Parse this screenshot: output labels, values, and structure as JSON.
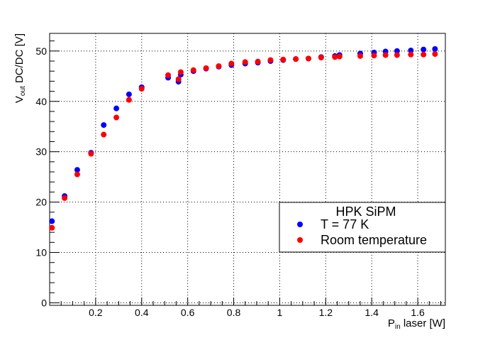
{
  "chart_data": {
    "type": "scatter",
    "title": "",
    "xlabel": {
      "main": "P",
      "sub": "in",
      "rest": " laser [W]"
    },
    "ylabel": {
      "main": "V",
      "sub": "out",
      "rest": " DC/DC [V]"
    },
    "xlim": [
      0.0,
      1.72
    ],
    "ylim": [
      -0.5,
      53.5
    ],
    "x_ticks": [
      0.2,
      0.4,
      0.6,
      0.8,
      1.0,
      1.2,
      1.4,
      1.6
    ],
    "x_tick_labels": [
      "0.2",
      "0.4",
      "0.6",
      "0.8",
      "1",
      "1.2",
      "1.4",
      "1.6"
    ],
    "y_ticks": [
      0,
      10,
      20,
      30,
      40,
      50
    ],
    "y_tick_labels": [
      "0",
      "10",
      "20",
      "30",
      "40",
      "50"
    ],
    "grid": true,
    "legend": {
      "title": "HPK SiPM",
      "placement": "lower-right"
    },
    "series": [
      {
        "name": "T = 77 K",
        "color": "#0000ff",
        "x": [
          0.01,
          0.065,
          0.12,
          0.18,
          0.235,
          0.29,
          0.345,
          0.4,
          0.515,
          0.56,
          0.57,
          0.625,
          0.68,
          0.735,
          0.79,
          0.85,
          0.905,
          0.96,
          1.015,
          1.07,
          1.125,
          1.18,
          1.24,
          1.26,
          1.35,
          1.41,
          1.46,
          1.51,
          1.57,
          1.625,
          1.675
        ],
        "y": [
          16.2,
          21.2,
          26.4,
          29.8,
          35.3,
          38.6,
          41.4,
          42.8,
          44.7,
          43.9,
          45.3,
          46.0,
          46.5,
          46.9,
          47.2,
          47.5,
          47.7,
          48.0,
          48.2,
          48.4,
          48.5,
          48.8,
          49.0,
          49.2,
          49.5,
          49.7,
          49.9,
          50.0,
          50.1,
          50.3,
          50.4
        ]
      },
      {
        "name": "Room temperature",
        "color": "#ff0000",
        "x": [
          0.01,
          0.065,
          0.12,
          0.18,
          0.235,
          0.29,
          0.345,
          0.4,
          0.515,
          0.56,
          0.57,
          0.625,
          0.68,
          0.735,
          0.79,
          0.85,
          0.905,
          0.96,
          1.015,
          1.07,
          1.125,
          1.18,
          1.24,
          1.26,
          1.35,
          1.41,
          1.46,
          1.51,
          1.57,
          1.625,
          1.675
        ],
        "y": [
          14.9,
          20.8,
          25.5,
          29.6,
          33.4,
          36.8,
          40.3,
          42.5,
          45.2,
          44.4,
          45.8,
          46.2,
          46.6,
          47.0,
          47.5,
          47.8,
          47.9,
          48.2,
          48.3,
          48.4,
          48.5,
          48.7,
          48.8,
          48.9,
          49.0,
          49.1,
          49.2,
          49.2,
          49.3,
          49.3,
          49.4
        ]
      }
    ]
  }
}
